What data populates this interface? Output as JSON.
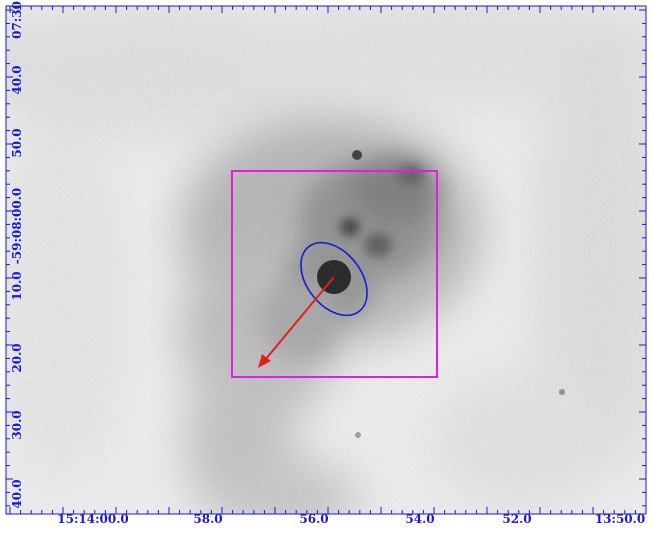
{
  "axes": {
    "color": "#1a1ad2",
    "dec_labels": [
      "07:30",
      "40.0",
      "50.0",
      "-59:08:00.0",
      "10.0",
      "20.0",
      "30.0",
      "40.0"
    ],
    "ra_labels": [
      "15:14:00.0",
      "58.0",
      "56.0",
      "54.0",
      "52.0",
      "13:50.0"
    ]
  },
  "regions": {
    "box_color": "#e020e0",
    "ellipse_color": "#1a1ad2",
    "arrow_color": "#e02020"
  },
  "image": {
    "colormap": "grey",
    "background": "#ffffff"
  }
}
